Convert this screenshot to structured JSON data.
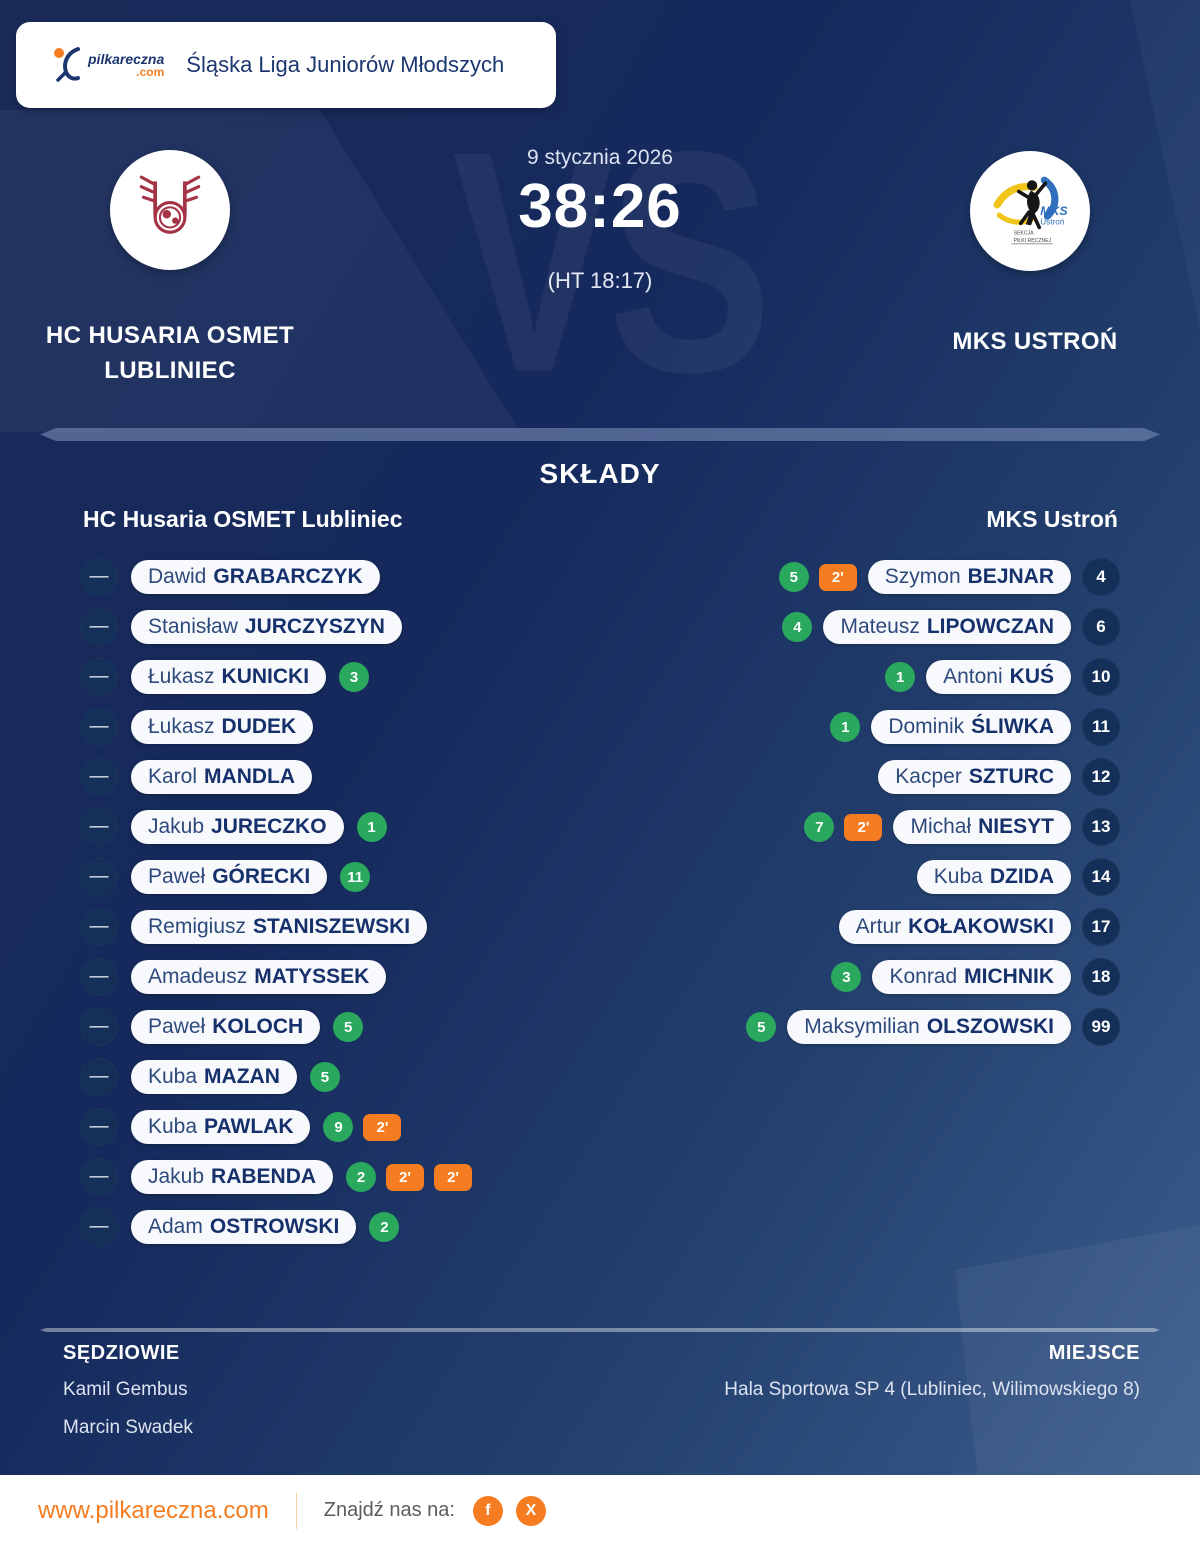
{
  "header": {
    "league": "Śląska Liga Juniorów Młodszych",
    "brand": {
      "name": "pilkareczna",
      "tld": ".com"
    }
  },
  "match": {
    "date": "9 stycznia 2026",
    "score": "38:26",
    "halftime": "(HT 18:17)",
    "vs_watermark": "VS",
    "home": {
      "name": "HC HUSARIA OSMET LUBLINIEC"
    },
    "away": {
      "name": "MKS USTROŃ"
    }
  },
  "lineups": {
    "title": "SKŁADY",
    "number_placeholder": "—",
    "home": {
      "header": "HC Husaria OSMET Lubliniec",
      "players": [
        {
          "first": "Dawid",
          "last": "GRABARCZYK"
        },
        {
          "first": "Stanisław",
          "last": "JURCZYSZYN"
        },
        {
          "first": "Łukasz",
          "last": "KUNICKI",
          "goals": 3
        },
        {
          "first": "Łukasz",
          "last": "DUDEK"
        },
        {
          "first": "Karol",
          "last": "MANDLA"
        },
        {
          "first": "Jakub",
          "last": "JURECZKO",
          "goals": 1
        },
        {
          "first": "Paweł",
          "last": "GÓRECKI",
          "goals": 11
        },
        {
          "first": "Remigiusz",
          "last": "STANISZEWSKI"
        },
        {
          "first": "Amadeusz",
          "last": "MATYSSEK"
        },
        {
          "first": "Paweł",
          "last": "KOLOCH",
          "goals": 5
        },
        {
          "first": "Kuba",
          "last": "MAZAN",
          "goals": 5
        },
        {
          "first": "Kuba",
          "last": "PAWLAK",
          "goals": 9,
          "suspensions": [
            "2'"
          ]
        },
        {
          "first": "Jakub",
          "last": "RABENDA",
          "goals": 2,
          "suspensions": [
            "2'",
            "2'"
          ]
        },
        {
          "first": "Adam",
          "last": "OSTROWSKI",
          "goals": 2
        }
      ]
    },
    "away": {
      "header": "MKS Ustroń",
      "players": [
        {
          "first": "Szymon",
          "last": "BEJNAR",
          "number": 4,
          "goals": 5,
          "suspensions": [
            "2'"
          ]
        },
        {
          "first": "Mateusz",
          "last": "LIPOWCZAN",
          "number": 6,
          "goals": 4
        },
        {
          "first": "Antoni",
          "last": "KUŚ",
          "number": 10,
          "goals": 1
        },
        {
          "first": "Dominik",
          "last": "ŚLIWKA",
          "number": 11,
          "goals": 1
        },
        {
          "first": "Kacper",
          "last": "SZTURC",
          "number": 12
        },
        {
          "first": "Michał",
          "last": "NIESYT",
          "number": 13,
          "goals": 7,
          "suspensions": [
            "2'"
          ]
        },
        {
          "first": "Kuba",
          "last": "DZIDA",
          "number": 14
        },
        {
          "first": "Artur",
          "last": "KOŁAKOWSKI",
          "number": 17
        },
        {
          "first": "Konrad",
          "last": "MICHNIK",
          "number": 18,
          "goals": 3
        },
        {
          "first": "Maksymilian",
          "last": "OLSZOWSKI",
          "number": 99,
          "goals": 5
        }
      ]
    }
  },
  "footer": {
    "referees": {
      "title": "SĘDZIOWIE",
      "names": [
        "Kamil Gembus",
        "Marcin Swadek"
      ]
    },
    "venue": {
      "title": "MIEJSCE",
      "value": "Hala Sportowa SP 4 (Lubliniec, Wilimowskiego 8)"
    }
  },
  "bottom_bar": {
    "website": "www.pilkareczna.com",
    "find_us": "Znajdź nas na:",
    "social": [
      {
        "name": "facebook",
        "glyph": "f"
      },
      {
        "name": "x",
        "glyph": "X"
      }
    ]
  },
  "colors": {
    "accent_orange": "#f57c20",
    "goals_green": "#2aa85e",
    "navy_dark": "#15295c",
    "pill_bg": "#f7f9fc",
    "crest_red": "#a43445",
    "logo_blue": "#2f6fbd",
    "logo_yellow": "#f0c419"
  }
}
